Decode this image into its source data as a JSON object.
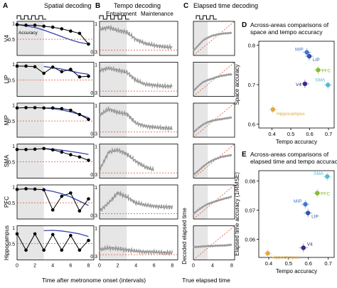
{
  "panels": {
    "A": {
      "letter": "A",
      "title": "Spatial decoding"
    },
    "B": {
      "letter": "B",
      "title": "Tempo decoding",
      "sub1": "Entrainment",
      "sub2": "Maintenance"
    },
    "C": {
      "letter": "C",
      "title": "Elapsed time decoding"
    },
    "D": {
      "letter": "D",
      "title1": "Across-areas comparisons of",
      "title2": "space and tempo accuracy"
    },
    "E": {
      "letter": "E",
      "title1": "Across-areas comparisons of",
      "title2": "elapsed time and tempo accuracy"
    }
  },
  "rows": [
    "V4",
    "LIP",
    "MIP",
    "SMA",
    "PFC",
    "Hippocampus"
  ],
  "accuracy_label": "Accuracy",
  "xlabel_A": "Time after metronome onset (intervals)",
  "xlabel_C": "True elapsed time",
  "ylabel_C": "Decoded elapsed time",
  "x_ticks": [
    "0",
    "2",
    "4",
    "6",
    "8"
  ],
  "y_ticks_A": [
    "1",
    "0.5"
  ],
  "y_ticks_B": [
    "1",
    "0.3"
  ],
  "colors": {
    "data": "#000000",
    "fit": "#3344aa",
    "chance": "#e05030",
    "trace": "#999999",
    "shade": "#e6e6e6",
    "V4": "#3a2a8a",
    "LIP": "#3355aa",
    "MIP": "#4477cc",
    "SMA": "#55bbcc",
    "PFC": "#88bb33",
    "Hippocampus": "#ddaa44"
  },
  "chart_data": [
    {
      "type": "scatter",
      "title": "Across-areas comparisons of space and tempo accuracy",
      "xlabel": "Tempo accuracy",
      "ylabel": "Space accuracy",
      "xlim": [
        0.33,
        0.73
      ],
      "ylim": [
        0.59,
        0.81
      ],
      "x_ticks": [
        0.4,
        0.5,
        0.6,
        0.7
      ],
      "y_ticks": [
        0.6,
        0.7,
        0.8
      ],
      "series": [
        {
          "name": "MIP",
          "x": 0.585,
          "y": 0.782
        },
        {
          "name": "LIP",
          "x": 0.598,
          "y": 0.772
        },
        {
          "name": "PFC",
          "x": 0.645,
          "y": 0.737
        },
        {
          "name": "SMA",
          "x": 0.697,
          "y": 0.699
        },
        {
          "name": "V4",
          "x": 0.575,
          "y": 0.702
        },
        {
          "name": "Hippocampus",
          "x": 0.405,
          "y": 0.637
        }
      ]
    },
    {
      "type": "scatter",
      "title": "Across-areas comparisons of elapsed time and tempo accuracy",
      "xlabel": "Tempo accuracy",
      "ylabel": "Elapsed time accuracy (1/RMSE)",
      "xlim": [
        0.35,
        0.73
      ],
      "ylim": [
        0.0538,
        0.0835
      ],
      "x_ticks": [
        0.4,
        0.5,
        0.6,
        0.7
      ],
      "y_ticks": [
        0.06,
        0.07,
        0.08
      ],
      "series": [
        {
          "name": "SMA",
          "x": 0.695,
          "y": 0.0815
        },
        {
          "name": "PFC",
          "x": 0.645,
          "y": 0.0758
        },
        {
          "name": "MIP",
          "x": 0.585,
          "y": 0.072
        },
        {
          "name": "LIP",
          "x": 0.598,
          "y": 0.069
        },
        {
          "name": "V4",
          "x": 0.575,
          "y": 0.0571
        },
        {
          "name": "Hippocampus",
          "x": 0.395,
          "y": 0.0552
        }
      ]
    },
    {
      "type": "line",
      "title": "Spatial decoding",
      "xlabel": "Time after metronome onset (intervals)",
      "ylabel": "Accuracy",
      "x": [
        0,
        1,
        2,
        3,
        4,
        5,
        6,
        7,
        8
      ],
      "xlim": [
        0,
        8.6
      ],
      "ylim": [
        0,
        1.05
      ],
      "chance": 0.5,
      "series": [
        {
          "name": "V4",
          "values": [
            0.95,
            0.93,
            0.93,
            0.9,
            0.87,
            0.82,
            0.75,
            0.68,
            0.35
          ],
          "fit": [
            0.95,
            0.91,
            0.86,
            0.78,
            0.68,
            0.58,
            0.48,
            0.4,
            0.35
          ]
        },
        {
          "name": "LIP",
          "values": [
            0.93,
            0.93,
            0.91,
            0.71,
            0.9,
            0.76,
            0.83,
            0.6,
            0.62
          ],
          "fit": [
            null,
            null,
            null,
            0.92,
            0.88,
            0.84,
            0.78,
            0.72,
            0.68
          ]
        },
        {
          "name": "MIP",
          "values": [
            0.9,
            0.91,
            0.91,
            0.9,
            0.9,
            0.88,
            0.83,
            0.7,
            0.55
          ],
          "fit": [
            null,
            null,
            null,
            0.9,
            0.88,
            0.84,
            0.78,
            0.7,
            0.6
          ]
        },
        {
          "name": "SMA",
          "values": [
            0.88,
            0.88,
            0.89,
            0.91,
            0.87,
            0.8,
            0.72,
            0.65,
            0.55
          ],
          "fit": [
            null,
            null,
            null,
            0.91,
            0.89,
            0.86,
            0.82,
            0.78,
            0.73
          ]
        },
        {
          "name": "PFC",
          "values": [
            0.91,
            0.93,
            0.92,
            0.9,
            0.28,
            0.7,
            0.8,
            0.25,
            0.62
          ],
          "fit": [
            null,
            null,
            null,
            0.9,
            0.85,
            0.78,
            0.68,
            0.55,
            0.42
          ]
        },
        {
          "name": "Hippocampus",
          "values": [
            0.8,
            0.3,
            0.8,
            0.3,
            0.78,
            0.3,
            0.75,
            0.3,
            0.6
          ],
          "fit": [
            null,
            null,
            null,
            0.9,
            0.91,
            0.89,
            0.85,
            0.8,
            0.72
          ]
        }
      ]
    },
    {
      "type": "line",
      "title": "Tempo decoding",
      "xlabel": "Time after metronome onset (intervals)",
      "xlim": [
        0,
        8.6
      ],
      "ylim": [
        0.2,
        1.05
      ],
      "chance": 0.33,
      "series": [
        {
          "name": "V4",
          "values": [
            0.85,
            0.9,
            0.82,
            0.78,
            0.6,
            0.5,
            0.45,
            0.42,
            0.4
          ]
        },
        {
          "name": "LIP",
          "values": [
            0.85,
            0.9,
            0.85,
            0.8,
            0.6,
            0.5,
            0.48,
            0.45,
            0.45
          ]
        },
        {
          "name": "MIP",
          "values": [
            0.75,
            0.9,
            0.82,
            0.78,
            0.55,
            0.48,
            0.45,
            0.43,
            0.42
          ]
        },
        {
          "name": "SMA",
          "values": [
            0.4,
            0.85,
            0.9,
            0.8,
            0.62,
            0.48,
            0.4,
            null,
            null
          ]
        },
        {
          "name": "PFC",
          "values": [
            0.4,
            0.6,
            0.85,
            0.75,
            0.6,
            0.55,
            0.52,
            0.5,
            0.5
          ]
        },
        {
          "name": "Hippocampus",
          "values": [
            0.45,
            0.5,
            0.48,
            0.45,
            0.42,
            0.4,
            0.4,
            0.38,
            0.38
          ]
        }
      ]
    },
    {
      "type": "line",
      "title": "Elapsed time decoding",
      "xlabel": "True elapsed time",
      "ylabel": "Decoded elapsed time",
      "x": [
        0,
        1,
        2,
        3,
        4,
        5,
        6,
        7,
        8
      ],
      "xlim": [
        0,
        8.6
      ],
      "ylim": [
        0,
        8.6
      ],
      "series": [
        {
          "name": "V4",
          "values": [
            1.2,
            2.5,
            3.8,
            4.5,
            5.0,
            5.3,
            5.5,
            5.6,
            5.7
          ]
        },
        {
          "name": "LIP",
          "values": [
            1.3,
            2.6,
            3.6,
            4.1,
            4.5,
            4.9,
            5.2,
            5.4,
            5.6
          ]
        },
        {
          "name": "MIP",
          "values": [
            1.2,
            2.3,
            3.2,
            3.8,
            4.2,
            4.4,
            4.6,
            4.8,
            5.0
          ]
        },
        {
          "name": "SMA",
          "values": [
            0.8,
            1.8,
            2.9,
            3.8,
            4.5,
            5.0,
            5.4,
            5.6,
            5.8
          ]
        },
        {
          "name": "PFC",
          "values": [
            1.3,
            2.3,
            3.1,
            3.8,
            4.2,
            4.6,
            5.0,
            5.3,
            5.6
          ]
        },
        {
          "name": "Hippocampus",
          "values": [
            3.2,
            3.3,
            3.4,
            3.5,
            3.5,
            3.6,
            3.6,
            3.7,
            3.8
          ]
        }
      ]
    }
  ]
}
